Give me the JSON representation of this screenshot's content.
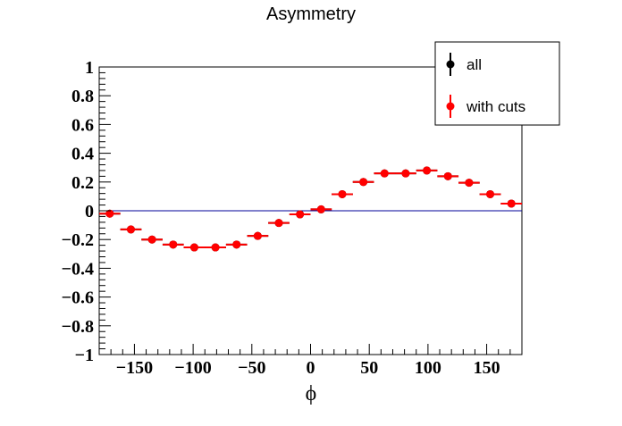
{
  "chart_data": {
    "type": "scatter",
    "title": "Asymmetry",
    "xlabel": "ϕ",
    "ylabel": "",
    "xlim": [
      -180,
      180
    ],
    "ylim": [
      -1,
      1
    ],
    "x_ticks": [
      -150,
      -100,
      -50,
      0,
      50,
      100,
      150
    ],
    "x_tick_labels": [
      "−150",
      "−100",
      "−50",
      "0",
      "50",
      "100",
      "150"
    ],
    "y_ticks": [
      -1,
      -0.8,
      -0.6,
      -0.4,
      -0.2,
      0,
      0.2,
      0.4,
      0.6,
      0.8,
      1
    ],
    "y_tick_labels": [
      "−1",
      "−0.8",
      "−0.6",
      "−0.4",
      "−0.2",
      "0",
      "0.2",
      "0.4",
      "0.6",
      "0.8",
      "1"
    ],
    "bin_half_width": 9,
    "reference_line": {
      "y": 0,
      "color": "#000099"
    },
    "grid": false,
    "legend_position": "top-right",
    "series": [
      {
        "name": "all",
        "color": "#000000",
        "x": [
          -171,
          -153,
          -135,
          -117,
          -99,
          -81,
          -63,
          -45,
          -27,
          -9,
          9,
          27,
          45,
          63,
          81,
          99,
          117,
          135,
          153,
          171
        ],
        "y": [
          -0.02,
          -0.13,
          -0.2,
          -0.235,
          -0.255,
          -0.255,
          -0.235,
          -0.175,
          -0.085,
          -0.025,
          0.01,
          0.115,
          0.2,
          0.26,
          0.26,
          0.28,
          0.24,
          0.195,
          0.115,
          0.05
        ]
      },
      {
        "name": "with cuts",
        "color": "#ff0000",
        "x": [
          -171,
          -153,
          -135,
          -117,
          -99,
          -81,
          -63,
          -45,
          -27,
          -9,
          9,
          27,
          45,
          63,
          81,
          99,
          117,
          135,
          153,
          171
        ],
        "y": [
          -0.02,
          -0.13,
          -0.2,
          -0.235,
          -0.255,
          -0.255,
          -0.235,
          -0.175,
          -0.085,
          -0.025,
          0.01,
          0.115,
          0.2,
          0.26,
          0.26,
          0.28,
          0.24,
          0.195,
          0.115,
          0.05
        ]
      }
    ]
  }
}
